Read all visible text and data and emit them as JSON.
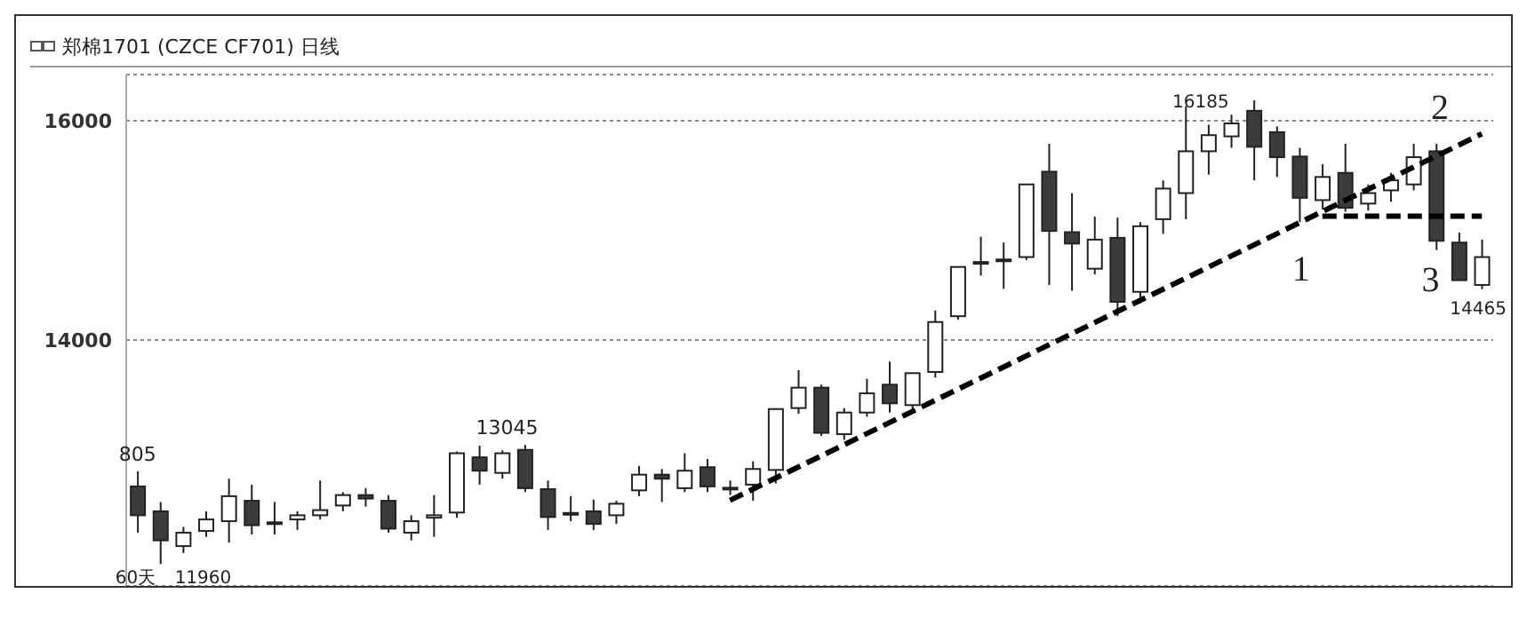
{
  "chart_data": {
    "type": "candlestick",
    "title": "郑棉1701 (CZCE CF701) 日线",
    "categories": [
      null,
      null,
      null,
      null,
      null,
      null,
      null,
      null,
      null,
      null,
      null,
      null,
      null,
      null,
      null,
      null,
      null,
      null,
      null,
      null,
      null,
      null,
      null,
      null,
      null,
      null,
      null,
      null,
      null,
      null,
      null,
      null,
      null,
      null,
      null,
      null,
      null,
      null,
      null,
      null,
      null,
      null,
      null,
      null,
      null,
      null,
      null,
      null,
      null,
      null,
      null,
      null,
      null,
      null,
      null,
      null,
      null,
      null,
      null,
      null
    ],
    "ohlc": [
      [
        12667,
        12805,
        12245,
        12404
      ],
      [
        12440,
        12525,
        11960,
        12175
      ],
      [
        12123,
        12298,
        12060,
        12245
      ],
      [
        12261,
        12440,
        12207,
        12366
      ],
      [
        12350,
        12737,
        12155,
        12578
      ],
      [
        12536,
        12683,
        12229,
        12313
      ],
      [
        12340,
        12525,
        12229,
        12330
      ],
      [
        12366,
        12440,
        12270,
        12404
      ],
      [
        12404,
        12721,
        12366,
        12451
      ],
      [
        12493,
        12615,
        12440,
        12588
      ],
      [
        12588,
        12652,
        12483,
        12556
      ],
      [
        12536,
        12588,
        12245,
        12282
      ],
      [
        12245,
        12404,
        12175,
        12350
      ],
      [
        12382,
        12588,
        12207,
        12404
      ],
      [
        12429,
        12985,
        12382,
        12969
      ],
      [
        12932,
        13038,
        12683,
        12810
      ],
      [
        12790,
        12995,
        12737,
        12969
      ],
      [
        13000,
        13045,
        12615,
        12651
      ],
      [
        12642,
        12721,
        12270,
        12388
      ],
      [
        12425,
        12578,
        12350,
        12415
      ],
      [
        12440,
        12547,
        12270,
        12325
      ],
      [
        12404,
        12536,
        12325,
        12509
      ],
      [
        12631,
        12853,
        12578,
        12774
      ],
      [
        12774,
        12826,
        12525,
        12737
      ],
      [
        12651,
        12969,
        12615,
        12810
      ],
      [
        12842,
        12917,
        12615,
        12667
      ],
      [
        12655,
        12721,
        12588,
        12645
      ],
      [
        12683,
        12896,
        12536,
        12826
      ],
      [
        12817,
        13372,
        12694,
        13372
      ],
      [
        13381,
        13726,
        13329,
        13567
      ],
      [
        13567,
        13594,
        13128,
        13155
      ],
      [
        13143,
        13381,
        13091,
        13340
      ],
      [
        13340,
        13647,
        13302,
        13515
      ],
      [
        13594,
        13805,
        13340,
        13424
      ],
      [
        13408,
        13699,
        13329,
        13699
      ],
      [
        13710,
        14270,
        13658,
        14165
      ],
      [
        14218,
        14667,
        14186,
        14667
      ],
      [
        14698,
        14943,
        14588,
        14712
      ],
      [
        14725,
        14889,
        14467,
        14735
      ],
      [
        14757,
        15419,
        14730,
        15419
      ],
      [
        15535,
        15789,
        14503,
        14995
      ],
      [
        14984,
        15340,
        14451,
        14880
      ],
      [
        14651,
        15127,
        14599,
        14916
      ],
      [
        14932,
        15117,
        14218,
        14349
      ],
      [
        14440,
        15075,
        14334,
        15038
      ],
      [
        15102,
        15456,
        14968,
        15381
      ],
      [
        15340,
        16133,
        15102,
        15721
      ],
      [
        15721,
        15963,
        15508,
        15868
      ],
      [
        15857,
        16054,
        15752,
        15975
      ],
      [
        16090,
        16185,
        15456,
        15762
      ],
      [
        15895,
        15948,
        15487,
        15667
      ],
      [
        15673,
        15752,
        15075,
        15297
      ],
      [
        15276,
        15603,
        15191,
        15487
      ],
      [
        15524,
        15789,
        15170,
        15206
      ],
      [
        15244,
        15419,
        15181,
        15340
      ],
      [
        15365,
        15524,
        15260,
        15456
      ],
      [
        15419,
        15789,
        15365,
        15667
      ],
      [
        15721,
        15789,
        14821,
        14905
      ],
      [
        14889,
        14980,
        14546,
        14546
      ],
      [
        14503,
        14916,
        14465,
        14757
      ]
    ],
    "colors": [
      "#3c3c3c",
      "#3c3c3c",
      "#ffffff",
      "#ffffff",
      "#ffffff",
      "#3c3c3c",
      "#3c3c3c",
      "#ffffff",
      "#ffffff",
      "#ffffff",
      "#3c3c3c",
      "#3c3c3c",
      "#ffffff",
      "#ffffff",
      "#ffffff",
      "#3c3c3c",
      "#ffffff",
      "#3c3c3c",
      "#3c3c3c",
      "#3c3c3c",
      "#3c3c3c",
      "#ffffff",
      "#ffffff",
      "#3c3c3c",
      "#ffffff",
      "#3c3c3c",
      "#3c3c3c",
      "#ffffff",
      "#ffffff",
      "#ffffff",
      "#3c3c3c",
      "#ffffff",
      "#ffffff",
      "#3c3c3c",
      "#ffffff",
      "#ffffff",
      "#ffffff",
      "#ffffff",
      "#ffffff",
      "#ffffff",
      "#3c3c3c",
      "#3c3c3c",
      "#ffffff",
      "#3c3c3c",
      "#ffffff",
      "#ffffff",
      "#ffffff",
      "#ffffff",
      "#ffffff",
      "#3c3c3c",
      "#3c3c3c",
      "#3c3c3c",
      "#ffffff",
      "#3c3c3c",
      "#ffffff",
      "#ffffff",
      "#ffffff",
      "#3c3c3c",
      "#3c3c3c",
      "#ffffff"
    ],
    "series": [
      {
        "type": "line",
        "color": "#000000",
        "line_style": "dashed",
        "values": [
          null,
          null,
          null,
          null,
          null,
          null,
          null,
          null,
          null,
          null,
          null,
          null,
          null,
          null,
          null,
          null,
          null,
          null,
          null,
          null,
          null,
          null,
          null,
          null,
          null,
          null,
          12540,
          null,
          null,
          null,
          null,
          null,
          null,
          null,
          null,
          null,
          null,
          null,
          null,
          null,
          null,
          null,
          null,
          null,
          null,
          null,
          null,
          null,
          null,
          null,
          null,
          null,
          null,
          null,
          null,
          null,
          null,
          null,
          null,
          15880
        ]
      },
      {
        "type": "line",
        "color": "#000000",
        "line_style": "dashed",
        "values": [
          null,
          null,
          null,
          null,
          null,
          null,
          null,
          null,
          null,
          null,
          null,
          null,
          null,
          null,
          null,
          null,
          null,
          null,
          null,
          null,
          null,
          null,
          null,
          null,
          null,
          null,
          null,
          null,
          null,
          null,
          null,
          null,
          null,
          null,
          null,
          null,
          null,
          null,
          null,
          null,
          null,
          null,
          null,
          null,
          null,
          null,
          null,
          null,
          null,
          null,
          null,
          null,
          15130,
          null,
          null,
          null,
          null,
          null,
          null,
          15130
        ]
      }
    ],
    "ylim": [
      11760,
      16420
    ],
    "yticks": [
      14000,
      16000
    ],
    "grid": "y",
    "tick_labels": "y",
    "annotations": [
      "805",
      "60天",
      "11960",
      "13045",
      "16185",
      "14465",
      "1",
      "2",
      "3"
    ]
  }
}
